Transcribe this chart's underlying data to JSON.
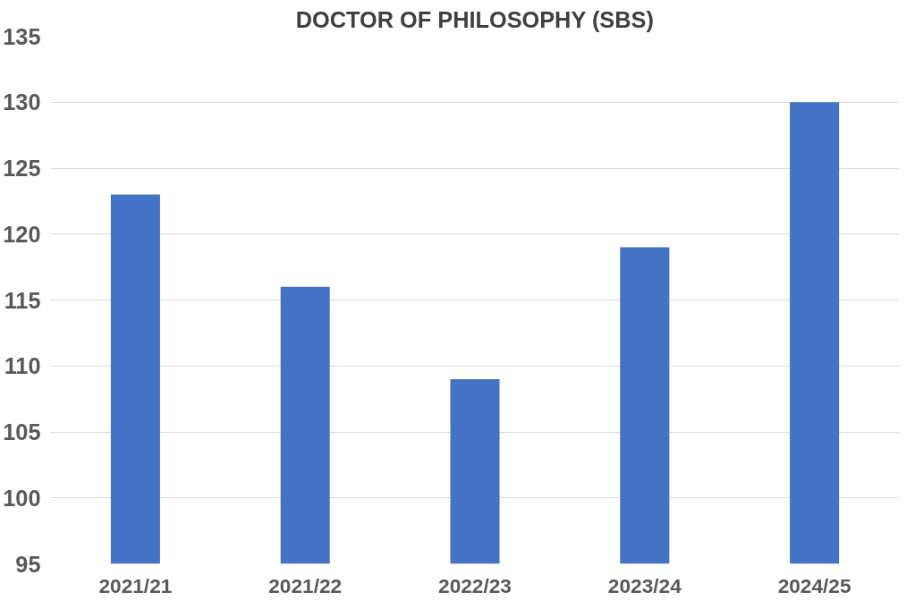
{
  "chart_data": {
    "type": "bar",
    "title": "DOCTOR OF PHILOSOPHY (SBS)",
    "categories": [
      "2021/21",
      "2021/22",
      "2022/23",
      "2023/24",
      "2024/25"
    ],
    "values": [
      123,
      116,
      109,
      119,
      130
    ],
    "color": "#4472c4",
    "ylim": [
      95,
      135
    ],
    "yticks": [
      95,
      100,
      105,
      110,
      115,
      120,
      125,
      130,
      135
    ],
    "grid": "y"
  }
}
